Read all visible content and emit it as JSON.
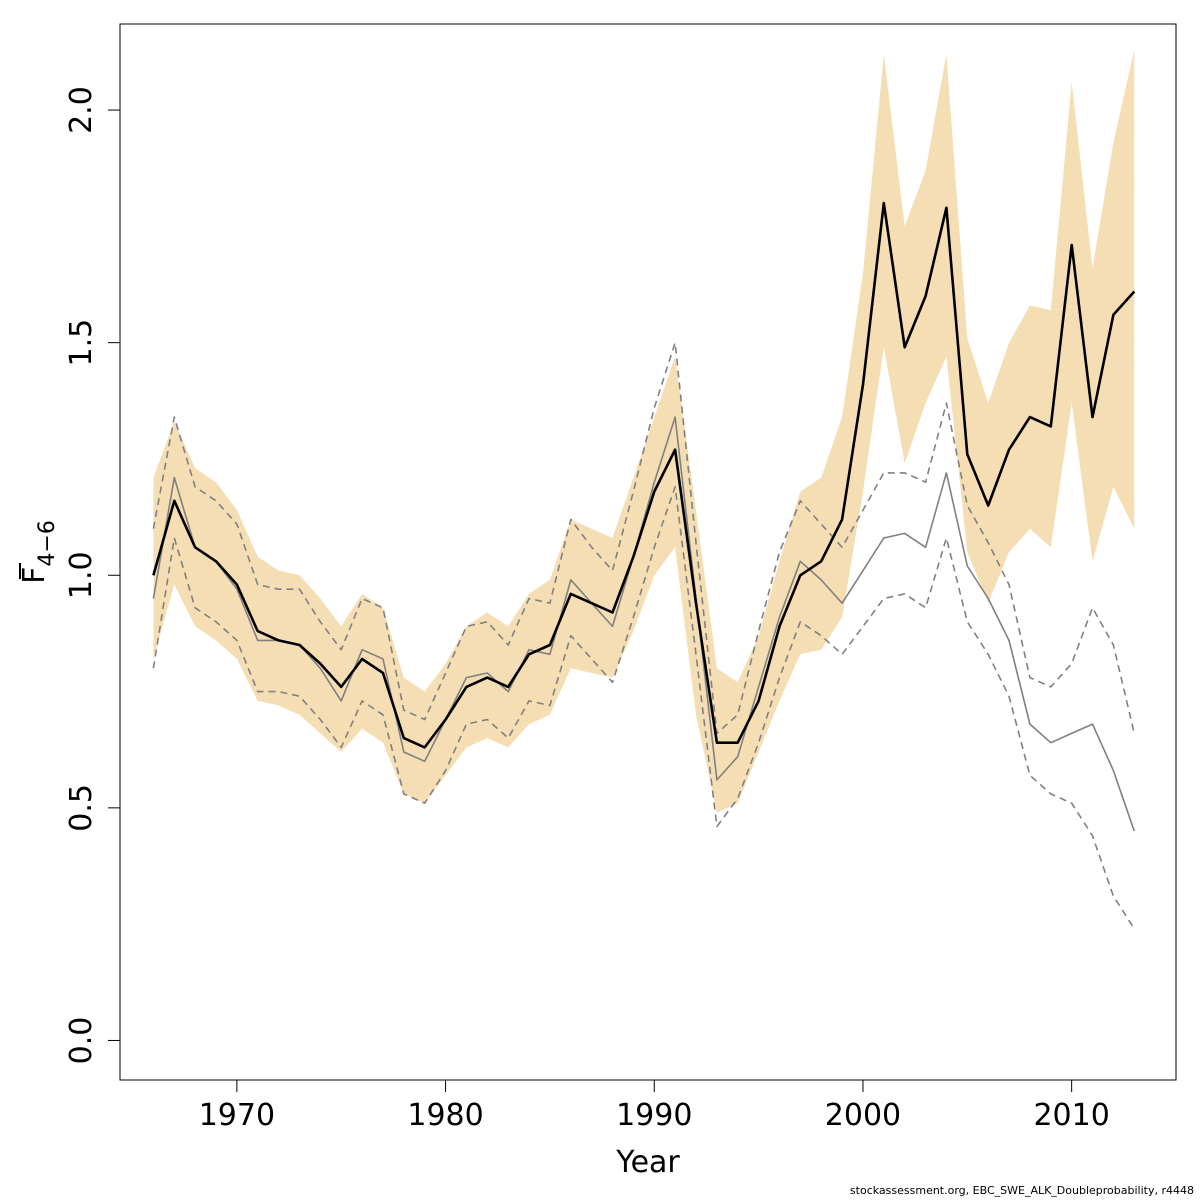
{
  "chart_data": {
    "type": "line",
    "xlabel": "Year",
    "ylabel": {
      "main": "F",
      "sub": "4−6",
      "overline": true
    },
    "xlim": [
      1964.4,
      2015.0
    ],
    "ylim": [
      -0.085,
      2.185
    ],
    "xticks": [
      1970,
      1980,
      1990,
      2000,
      2010
    ],
    "xtick_labels": [
      "1970",
      "1980",
      "1990",
      "2000",
      "2010"
    ],
    "yticks": [
      0.0,
      0.5,
      1.0,
      1.5,
      2.0
    ],
    "ytick_labels": [
      "0.0",
      "0.5",
      "1.0",
      "1.5",
      "2.0"
    ],
    "grid": false,
    "x": [
      1966,
      1967,
      1968,
      1969,
      1970,
      1971,
      1972,
      1973,
      1974,
      1975,
      1976,
      1977,
      1978,
      1979,
      1980,
      1981,
      1982,
      1983,
      1984,
      1985,
      1986,
      1987,
      1988,
      1989,
      1990,
      1991,
      1992,
      1993,
      1994,
      1995,
      1996,
      1997,
      1998,
      1999,
      2000,
      2001,
      2002,
      2003,
      2004,
      2005,
      2006,
      2007,
      2008,
      2009,
      2010,
      2011,
      2012,
      2013
    ],
    "series": [
      {
        "role": "band",
        "color": "#f5deb3",
        "lower": [
          0.82,
          0.98,
          0.89,
          0.86,
          0.82,
          0.73,
          0.72,
          0.7,
          0.66,
          0.62,
          0.67,
          0.64,
          0.53,
          0.51,
          0.57,
          0.63,
          0.65,
          0.63,
          0.68,
          0.7,
          0.8,
          0.79,
          0.78,
          0.88,
          1.0,
          1.06,
          0.7,
          0.49,
          0.51,
          0.62,
          0.73,
          0.83,
          0.84,
          0.91,
          1.18,
          1.49,
          1.24,
          1.37,
          1.47,
          1.05,
          0.94,
          1.05,
          1.1,
          1.06,
          1.37,
          1.03,
          1.19,
          1.1
        ],
        "upper": [
          1.21,
          1.33,
          1.23,
          1.2,
          1.14,
          1.04,
          1.01,
          1.0,
          0.95,
          0.89,
          0.96,
          0.93,
          0.78,
          0.75,
          0.81,
          0.89,
          0.92,
          0.89,
          0.96,
          0.99,
          1.12,
          1.1,
          1.08,
          1.21,
          1.34,
          1.47,
          1.14,
          0.8,
          0.77,
          0.87,
          1.03,
          1.18,
          1.21,
          1.34,
          1.65,
          2.12,
          1.75,
          1.87,
          2.12,
          1.51,
          1.37,
          1.5,
          1.58,
          1.57,
          2.06,
          1.66,
          1.93,
          2.13
        ]
      },
      {
        "role": "estimate",
        "color": "#000000",
        "values": [
          1.0,
          1.16,
          1.06,
          1.03,
          0.98,
          0.88,
          0.86,
          0.85,
          0.81,
          0.76,
          0.82,
          0.79,
          0.65,
          0.63,
          0.69,
          0.76,
          0.78,
          0.76,
          0.83,
          0.85,
          0.96,
          0.94,
          0.92,
          1.04,
          1.18,
          1.27,
          0.94,
          0.64,
          0.64,
          0.73,
          0.89,
          1.0,
          1.03,
          1.12,
          1.41,
          1.8,
          1.49,
          1.6,
          1.79,
          1.26,
          1.15,
          1.27,
          1.34,
          1.32,
          1.71,
          1.34,
          1.56,
          1.61
        ]
      },
      {
        "role": "comparison",
        "color": "#808080",
        "values": [
          0.95,
          1.21,
          1.06,
          1.03,
          0.97,
          0.86,
          0.86,
          0.85,
          0.8,
          0.73,
          0.84,
          0.82,
          0.62,
          0.6,
          0.69,
          0.78,
          0.79,
          0.75,
          0.84,
          0.83,
          0.99,
          0.94,
          0.89,
          1.04,
          1.2,
          1.34,
          0.95,
          0.56,
          0.61,
          0.76,
          0.91,
          1.03,
          0.99,
          0.94,
          1.01,
          1.08,
          1.09,
          1.06,
          1.22,
          1.02,
          0.95,
          0.86,
          0.68,
          0.64,
          0.66,
          0.68,
          0.58,
          0.45
        ]
      },
      {
        "role": "comparison-upper",
        "color": "#808080",
        "dashed": true,
        "values": [
          1.1,
          1.34,
          1.19,
          1.16,
          1.11,
          0.98,
          0.97,
          0.97,
          0.9,
          0.84,
          0.95,
          0.93,
          0.71,
          0.69,
          0.79,
          0.89,
          0.9,
          0.85,
          0.95,
          0.94,
          1.12,
          1.06,
          1.01,
          1.18,
          1.36,
          1.5,
          1.07,
          0.66,
          0.7,
          0.88,
          1.05,
          1.16,
          1.11,
          1.06,
          1.14,
          1.22,
          1.22,
          1.2,
          1.37,
          1.15,
          1.07,
          0.98,
          0.78,
          0.76,
          0.81,
          0.93,
          0.85,
          0.66
        ]
      },
      {
        "role": "comparison-lower",
        "color": "#808080",
        "dashed": true,
        "values": [
          0.8,
          1.08,
          0.93,
          0.9,
          0.86,
          0.75,
          0.75,
          0.74,
          0.69,
          0.63,
          0.73,
          0.7,
          0.53,
          0.51,
          0.58,
          0.68,
          0.69,
          0.65,
          0.73,
          0.72,
          0.87,
          0.82,
          0.77,
          0.91,
          1.06,
          1.19,
          0.83,
          0.46,
          0.52,
          0.64,
          0.78,
          0.9,
          0.87,
          0.83,
          0.89,
          0.95,
          0.96,
          0.93,
          1.08,
          0.9,
          0.83,
          0.74,
          0.57,
          0.53,
          0.51,
          0.44,
          0.31,
          0.24
        ]
      }
    ]
  },
  "footer": "stockassessment.org, EBC_SWE_ALK_Doubleprobability, r4448"
}
